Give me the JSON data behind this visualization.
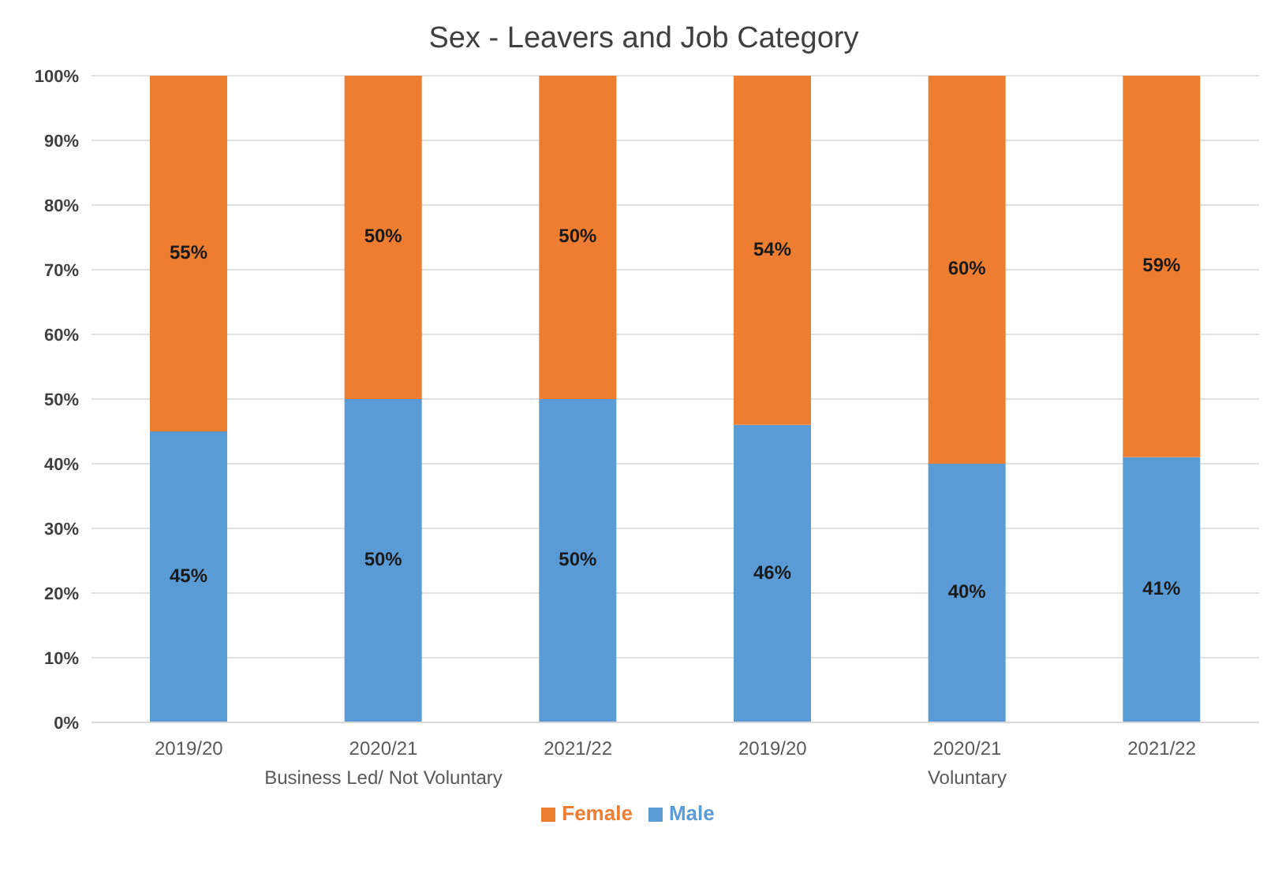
{
  "chart_data": {
    "type": "bar",
    "title": "Sex - Leavers and Job Category",
    "stacked": true,
    "categories": [
      "2019/20",
      "2020/21",
      "2021/22",
      "2019/20",
      "2020/21",
      "2021/22"
    ],
    "series": [
      {
        "name": "Male",
        "color": "#5b9bd5",
        "values": [
          45,
          50,
          50,
          46,
          40,
          41
        ],
        "value_labels": [
          "45%",
          "50%",
          "50%",
          "46%",
          "40%",
          "41%"
        ]
      },
      {
        "name": "Female",
        "color": "#ed7d31",
        "values": [
          55,
          50,
          50,
          54,
          60,
          59
        ],
        "value_labels": [
          "55%",
          "50%",
          "50%",
          "54%",
          "60%",
          "59%"
        ]
      }
    ],
    "ylim": [
      0,
      100
    ],
    "yticks": [
      {
        "value": 0,
        "label": "0%"
      },
      {
        "value": 10,
        "label": "10%"
      },
      {
        "value": 20,
        "label": "20%"
      },
      {
        "value": 30,
        "label": "30%"
      },
      {
        "value": 40,
        "label": "40%"
      },
      {
        "value": 50,
        "label": "50%"
      },
      {
        "value": 60,
        "label": "60%"
      },
      {
        "value": 70,
        "label": "70%"
      },
      {
        "value": 80,
        "label": "80%"
      },
      {
        "value": 90,
        "label": "90%"
      },
      {
        "value": 100,
        "label": "100%"
      }
    ],
    "grid": "y",
    "legend": "bottom",
    "annotations": [
      "Business Led/ Not Voluntary",
      "Voluntary"
    ]
  }
}
